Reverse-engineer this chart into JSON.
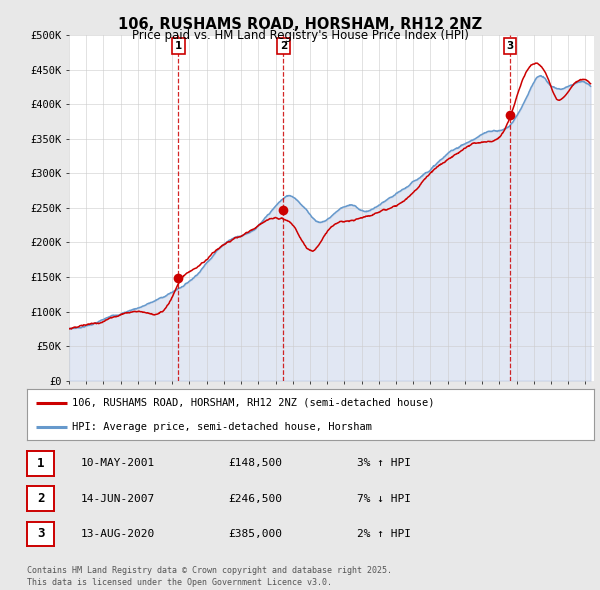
{
  "title": "106, RUSHAMS ROAD, HORSHAM, RH12 2NZ",
  "subtitle": "Price paid vs. HM Land Registry's House Price Index (HPI)",
  "bg_color": "#e8e8e8",
  "chart_bg": "#ffffff",
  "ylim": [
    0,
    500000
  ],
  "yticks": [
    0,
    50000,
    100000,
    150000,
    200000,
    250000,
    300000,
    350000,
    400000,
    450000,
    500000
  ],
  "ytick_labels": [
    "£0",
    "£50K",
    "£100K",
    "£150K",
    "£200K",
    "£250K",
    "£300K",
    "£350K",
    "£400K",
    "£450K",
    "£500K"
  ],
  "xlim_start": 1995.0,
  "xlim_end": 2025.5,
  "transactions": [
    {
      "date_num": 2001.36,
      "price": 148500,
      "label": "1"
    },
    {
      "date_num": 2007.45,
      "price": 246500,
      "label": "2"
    },
    {
      "date_num": 2020.62,
      "price": 385000,
      "label": "3"
    }
  ],
  "legend_line1": "106, RUSHAMS ROAD, HORSHAM, RH12 2NZ (semi-detached house)",
  "legend_line2": "HPI: Average price, semi-detached house, Horsham",
  "table_rows": [
    {
      "num": "1",
      "date": "10-MAY-2001",
      "price": "£148,500",
      "change": "3% ↑ HPI"
    },
    {
      "num": "2",
      "date": "14-JUN-2007",
      "price": "£246,500",
      "change": "7% ↓ HPI"
    },
    {
      "num": "3",
      "date": "13-AUG-2020",
      "price": "£385,000",
      "change": "2% ↑ HPI"
    }
  ],
  "footer": "Contains HM Land Registry data © Crown copyright and database right 2025.\nThis data is licensed under the Open Government Licence v3.0.",
  "red_line_color": "#cc0000",
  "blue_line_color": "#6699cc",
  "blue_fill_color": "#aabbdd",
  "vline_color": "#cc0000",
  "grid_color": "#cccccc"
}
